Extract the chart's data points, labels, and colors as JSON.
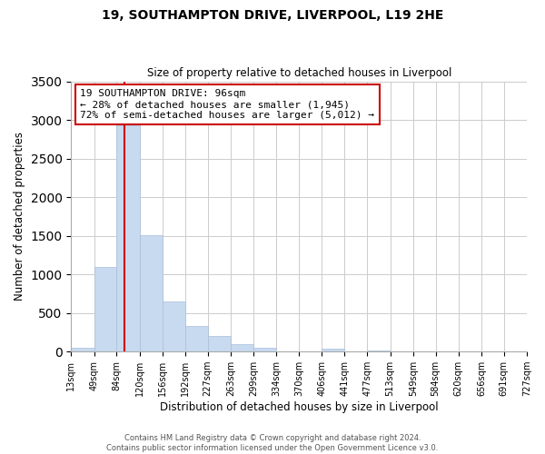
{
  "title": "19, SOUTHAMPTON DRIVE, LIVERPOOL, L19 2HE",
  "subtitle": "Size of property relative to detached houses in Liverpool",
  "xlabel": "Distribution of detached houses by size in Liverpool",
  "ylabel": "Number of detached properties",
  "bar_color": "#c8daf0",
  "bar_edge_color": "#aabfd8",
  "vline_color": "#cc0000",
  "vline_x": 96,
  "bin_edges": [
    13,
    49,
    84,
    120,
    156,
    192,
    227,
    263,
    299,
    334,
    370,
    406,
    441,
    477,
    513,
    549,
    584,
    620,
    656,
    691,
    727
  ],
  "bar_heights": [
    50,
    1100,
    2930,
    1510,
    650,
    330,
    200,
    100,
    50,
    0,
    0,
    35,
    0,
    20,
    0,
    0,
    0,
    0,
    0,
    0
  ],
  "tick_labels": [
    "13sqm",
    "49sqm",
    "84sqm",
    "120sqm",
    "156sqm",
    "192sqm",
    "227sqm",
    "263sqm",
    "299sqm",
    "334sqm",
    "370sqm",
    "406sqm",
    "441sqm",
    "477sqm",
    "513sqm",
    "549sqm",
    "584sqm",
    "620sqm",
    "656sqm",
    "691sqm",
    "727sqm"
  ],
  "annotation_line1": "19 SOUTHAMPTON DRIVE: 96sqm",
  "annotation_line2": "← 28% of detached houses are smaller (1,945)",
  "annotation_line3": "72% of semi-detached houses are larger (5,012) →",
  "annotation_box_color": "#ffffff",
  "annotation_box_edge": "#cc0000",
  "ylim": [
    0,
    3500
  ],
  "yticks": [
    0,
    500,
    1000,
    1500,
    2000,
    2500,
    3000,
    3500
  ],
  "footer1": "Contains HM Land Registry data © Crown copyright and database right 2024.",
  "footer2": "Contains public sector information licensed under the Open Government Licence v3.0."
}
